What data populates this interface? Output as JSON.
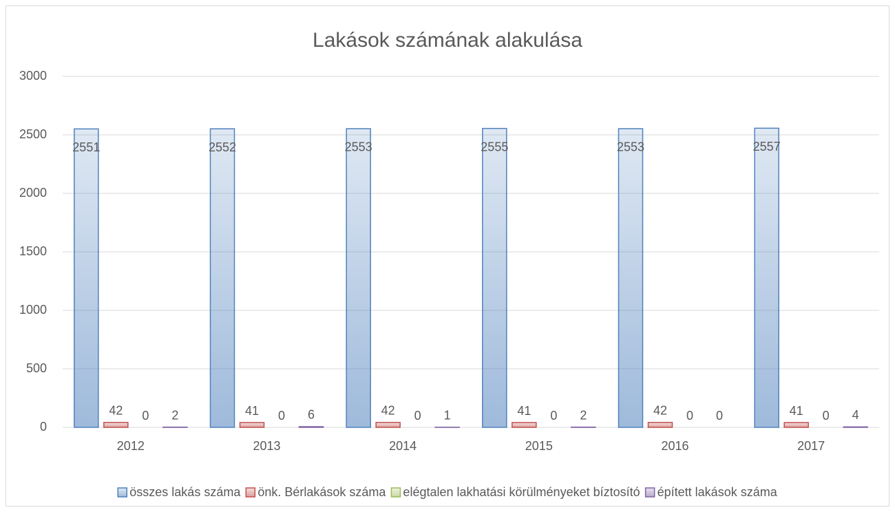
{
  "chart_data": {
    "type": "bar",
    "title": "Lakások számának alakulása",
    "categories": [
      "2012",
      "2013",
      "2014",
      "2015",
      "2016",
      "2017"
    ],
    "series": [
      {
        "name": "összes lakás száma",
        "color": "#4f81bd",
        "values": [
          2551,
          2552,
          2553,
          2555,
          2553,
          2557
        ]
      },
      {
        "name": "önk. Bérlakások száma",
        "color": "#c0504d",
        "values": [
          42,
          41,
          42,
          41,
          42,
          41
        ]
      },
      {
        "name": "elégtalen lakhatási körülményeket bíztosító",
        "color": "#9bbb59",
        "values": [
          0,
          0,
          0,
          0,
          0,
          0
        ]
      },
      {
        "name": "épített lakások száma",
        "color": "#8064a2",
        "values": [
          2,
          6,
          1,
          2,
          0,
          4
        ]
      }
    ],
    "ylim": [
      0,
      3000
    ],
    "yticks": [
      0,
      500,
      1000,
      1500,
      2000,
      2500,
      3000
    ],
    "grid": true,
    "legend": "bottom"
  }
}
